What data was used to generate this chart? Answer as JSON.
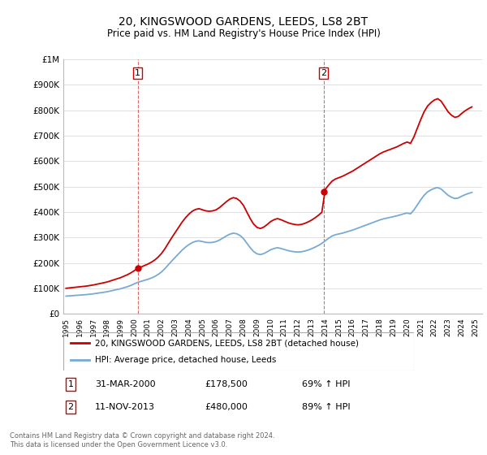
{
  "title": "20, KINGSWOOD GARDENS, LEEDS, LS8 2BT",
  "subtitle": "Price paid vs. HM Land Registry's House Price Index (HPI)",
  "ylim": [
    0,
    1000000
  ],
  "xlim_start": 1994.8,
  "xlim_end": 2025.5,
  "red_line_color": "#cc0000",
  "blue_line_color": "#77aad4",
  "dashed_vline_color": "#cc0000",
  "background_color": "#ffffff",
  "grid_color": "#e0e0e0",
  "legend_label_red": "20, KINGSWOOD GARDENS, LEEDS, LS8 2BT (detached house)",
  "legend_label_blue": "HPI: Average price, detached house, Leeds",
  "annotation1_text": "31-MAR-2000",
  "annotation1_price": "£178,500",
  "annotation1_hpi": "69% ↑ HPI",
  "annotation2_text": "11-NOV-2013",
  "annotation2_price": "£480,000",
  "annotation2_hpi": "89% ↑ HPI",
  "footer": "Contains HM Land Registry data © Crown copyright and database right 2024.\nThis data is licensed under the Open Government Licence v3.0.",
  "yticks": [
    0,
    100000,
    200000,
    300000,
    400000,
    500000,
    600000,
    700000,
    800000,
    900000,
    1000000
  ],
  "ytick_labels": [
    "£0",
    "£100K",
    "£200K",
    "£300K",
    "£400K",
    "£500K",
    "£600K",
    "£700K",
    "£800K",
    "£900K",
    "£1M"
  ],
  "sale1_x": 2000.25,
  "sale1_y": 178500,
  "sale2_x": 2013.87,
  "sale2_y": 480000,
  "hpi_years": [
    1995.0,
    1995.25,
    1995.5,
    1995.75,
    1996.0,
    1996.25,
    1996.5,
    1996.75,
    1997.0,
    1997.25,
    1997.5,
    1997.75,
    1998.0,
    1998.25,
    1998.5,
    1998.75,
    1999.0,
    1999.25,
    1999.5,
    1999.75,
    2000.0,
    2000.25,
    2000.5,
    2000.75,
    2001.0,
    2001.25,
    2001.5,
    2001.75,
    2002.0,
    2002.25,
    2002.5,
    2002.75,
    2003.0,
    2003.25,
    2003.5,
    2003.75,
    2004.0,
    2004.25,
    2004.5,
    2004.75,
    2005.0,
    2005.25,
    2005.5,
    2005.75,
    2006.0,
    2006.25,
    2006.5,
    2006.75,
    2007.0,
    2007.25,
    2007.5,
    2007.75,
    2008.0,
    2008.25,
    2008.5,
    2008.75,
    2009.0,
    2009.25,
    2009.5,
    2009.75,
    2010.0,
    2010.25,
    2010.5,
    2010.75,
    2011.0,
    2011.25,
    2011.5,
    2011.75,
    2012.0,
    2012.25,
    2012.5,
    2012.75,
    2013.0,
    2013.25,
    2013.5,
    2013.75,
    2014.0,
    2014.25,
    2014.5,
    2014.75,
    2015.0,
    2015.25,
    2015.5,
    2015.75,
    2016.0,
    2016.25,
    2016.5,
    2016.75,
    2017.0,
    2017.25,
    2017.5,
    2017.75,
    2018.0,
    2018.25,
    2018.5,
    2018.75,
    2019.0,
    2019.25,
    2019.5,
    2019.75,
    2020.0,
    2020.25,
    2020.5,
    2020.75,
    2021.0,
    2021.25,
    2021.5,
    2021.75,
    2022.0,
    2022.25,
    2022.5,
    2022.75,
    2023.0,
    2023.25,
    2023.5,
    2023.75,
    2024.0,
    2024.25,
    2024.5,
    2024.75
  ],
  "hpi_values": [
    70000,
    71000,
    72000,
    73000,
    74000,
    75000,
    76000,
    77500,
    79000,
    81000,
    83000,
    85000,
    87000,
    90000,
    93000,
    96000,
    99000,
    103000,
    107000,
    112000,
    118000,
    124000,
    128000,
    132000,
    136000,
    141000,
    147000,
    155000,
    165000,
    178000,
    193000,
    208000,
    222000,
    236000,
    250000,
    262000,
    272000,
    280000,
    285000,
    287000,
    284000,
    281000,
    280000,
    281000,
    284000,
    290000,
    298000,
    306000,
    313000,
    317000,
    315000,
    308000,
    296000,
    278000,
    260000,
    245000,
    236000,
    233000,
    237000,
    244000,
    252000,
    257000,
    260000,
    257000,
    253000,
    249000,
    246000,
    244000,
    243000,
    244000,
    247000,
    251000,
    256000,
    262000,
    269000,
    277000,
    287000,
    297000,
    306000,
    311000,
    314000,
    317000,
    321000,
    325000,
    329000,
    334000,
    339000,
    344000,
    349000,
    354000,
    359000,
    364000,
    369000,
    373000,
    376000,
    379000,
    382000,
    385000,
    389000,
    393000,
    396000,
    393000,
    408000,
    428000,
    448000,
    466000,
    479000,
    487000,
    493000,
    496000,
    490000,
    478000,
    466000,
    458000,
    453000,
    455000,
    462000,
    468000,
    473000,
    477000
  ]
}
